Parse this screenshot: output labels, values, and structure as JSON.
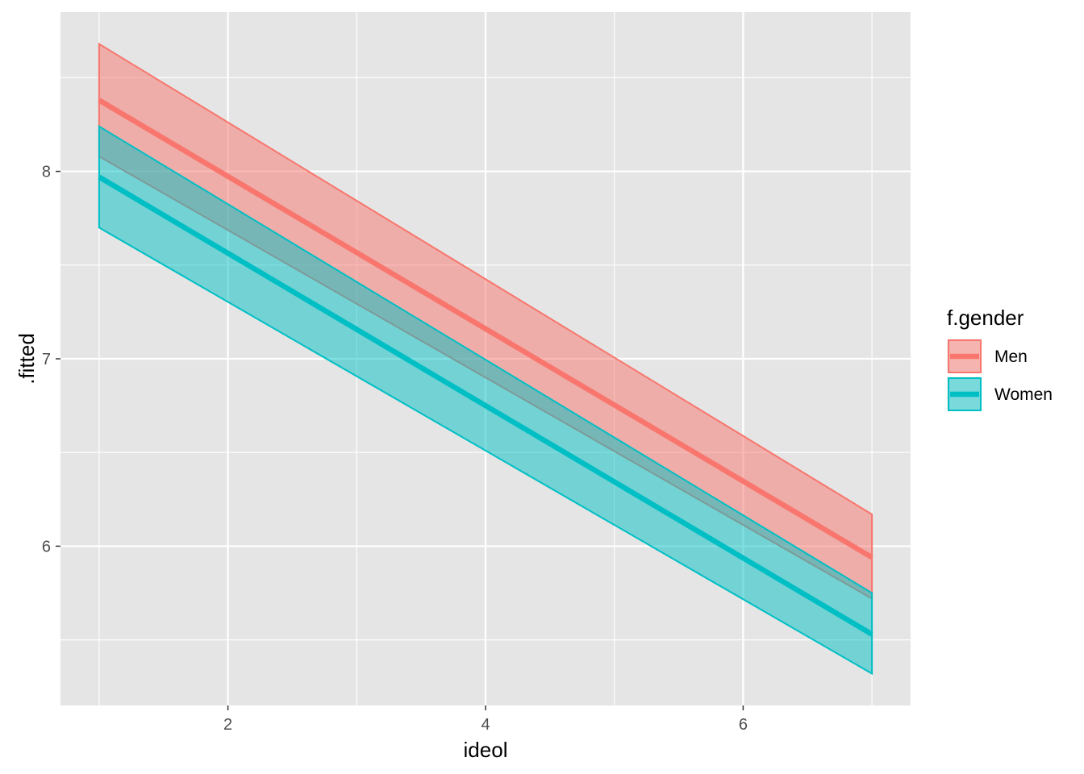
{
  "chart_data": {
    "type": "line",
    "xlabel": "ideol",
    "ylabel": ".fitted",
    "xlim": [
      0.7,
      7.3
    ],
    "ylim": [
      5.15,
      8.85
    ],
    "x_ticks": [
      2,
      4,
      6
    ],
    "x_tick_labels": [
      "2",
      "4",
      "6"
    ],
    "x_minor_ticks": [
      1,
      3,
      5,
      7
    ],
    "y_ticks": [
      6,
      7,
      8
    ],
    "y_tick_labels": [
      "6",
      "7",
      "8"
    ],
    "y_minor_ticks": [
      5.5,
      6.5,
      7.5,
      8.5
    ],
    "grid": true,
    "legend": {
      "title": "f.gender",
      "position": "right"
    },
    "series": [
      {
        "name": "Men",
        "color": "#F8766D",
        "x": [
          1,
          7
        ],
        "fit": [
          8.38,
          5.94
        ],
        "lower": [
          8.08,
          5.72
        ],
        "upper": [
          8.68,
          6.17
        ]
      },
      {
        "name": "Women",
        "color": "#00BFC4",
        "x": [
          1,
          7
        ],
        "fit": [
          7.97,
          5.53
        ],
        "lower": [
          7.7,
          5.32
        ],
        "upper": [
          8.24,
          5.75
        ]
      }
    ]
  }
}
